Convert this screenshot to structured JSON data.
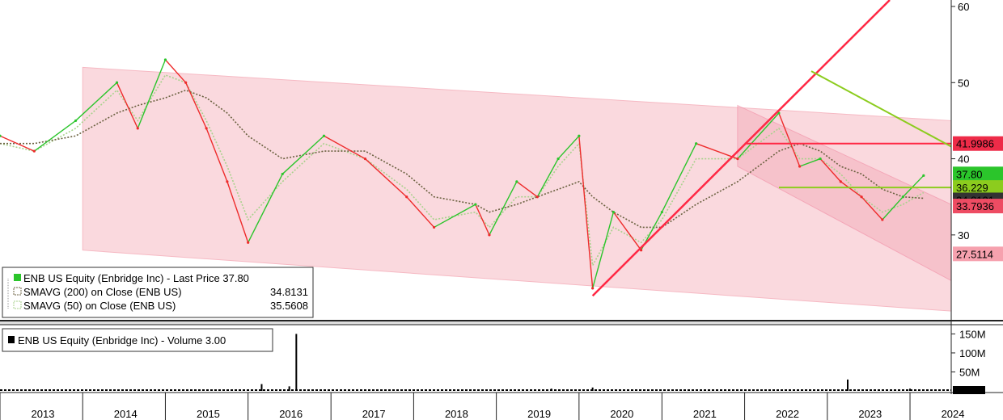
{
  "chart_data": [
    {
      "type": "line",
      "panel": "price",
      "title": "",
      "xlabel": "",
      "ylabel": "",
      "x": [
        "2013-01",
        "2013-06",
        "2013-12",
        "2014-06",
        "2014-09",
        "2015-01",
        "2015-04",
        "2015-07",
        "2015-10",
        "2016-01",
        "2016-06",
        "2016-12",
        "2017-06",
        "2017-12",
        "2018-04",
        "2018-10",
        "2018-12",
        "2019-04",
        "2019-07",
        "2019-10",
        "2020-01",
        "2020-03",
        "2020-06",
        "2020-10",
        "2021-01",
        "2021-06",
        "2021-12",
        "2022-06",
        "2022-09",
        "2022-12",
        "2023-03",
        "2023-06",
        "2023-09",
        "2023-12",
        "2024-03"
      ],
      "series": [
        {
          "name": "ENB US Equity (Enbridge Inc) - Last Price",
          "values": [
            43,
            41,
            45,
            50,
            44,
            53,
            50,
            44,
            37,
            29,
            38,
            43,
            40,
            35,
            31,
            34,
            30,
            37,
            35,
            40,
            43,
            23,
            33,
            28,
            33,
            42,
            40,
            46,
            39,
            40,
            37,
            35,
            32,
            35,
            37.8
          ]
        },
        {
          "name": "SMAVG (200) on Close (ENB US)",
          "values": [
            42,
            42,
            43,
            46,
            47,
            48,
            49,
            48,
            46,
            43,
            40,
            41,
            41,
            38,
            35,
            34,
            33,
            34,
            35,
            36,
            37,
            35,
            33,
            31,
            31,
            34,
            37,
            41,
            42,
            41,
            39,
            38,
            36,
            35,
            34.8131
          ]
        },
        {
          "name": "SMAVG (50) on Close (ENB US)",
          "values": [
            42,
            41,
            44,
            49,
            45,
            51,
            50,
            45,
            39,
            32,
            37,
            42,
            40,
            36,
            32,
            33,
            31,
            35,
            35,
            39,
            42,
            26,
            31,
            29,
            32,
            40,
            40,
            44,
            40,
            40,
            38,
            35,
            33,
            34,
            35.5608
          ]
        }
      ],
      "legend": [
        {
          "label": "ENB US Equity (Enbridge Inc) - Last Price 37.80",
          "value": ""
        },
        {
          "label": "SMAVG (200)  on Close (ENB US)",
          "value": "34.8131"
        },
        {
          "label": "SMAVG (50)  on Close (ENB US)",
          "value": "35.5608"
        }
      ],
      "legend_position": "bottom-left",
      "ylim": [
        18,
        60
      ],
      "yticks": [
        "30",
        "40",
        "50",
        "60"
      ],
      "price_tags": [
        {
          "text": "41.9986",
          "value": 41.9986,
          "color": "#ee2b48",
          "text_color": "#000000"
        },
        {
          "text": "37.80",
          "value": 37.8,
          "color": "#2bc52b",
          "text_color": "#000000"
        },
        {
          "text": "36.229",
          "value": 36.229,
          "color": "#8ccc1e",
          "text_color": "#000000"
        },
        {
          "text": "34.8131",
          "value": 34.8131,
          "color": "#333333",
          "text_color": "#ffffff"
        },
        {
          "text": "33.7936",
          "value": 33.7936,
          "color": "#ee4c63",
          "text_color": "#000000"
        },
        {
          "text": "27.5114",
          "value": 27.5114,
          "color": "#f6a1ae",
          "text_color": "#000000"
        }
      ],
      "annotations": {
        "long_channel_color": "#f9d0d6",
        "short_channel_color": "#f5b3bf",
        "uptrend_color": "#ff2844",
        "downtrend_color": "#8ccc1e"
      }
    },
    {
      "type": "bar",
      "panel": "volume",
      "title": "",
      "xlabel": "",
      "ylabel": "",
      "legend": [
        {
          "label": "ENB US Equity (Enbridge Inc) - Volume 3.00"
        }
      ],
      "ylim": [
        0,
        170
      ],
      "yticks": [
        "50M",
        "100M",
        "150M"
      ],
      "last_volume_tag": "3.00",
      "x": [
        "2016-03",
        "2016-07",
        "2016-08",
        "2019-09",
        "2020-03",
        "2023-04",
        "2024-01"
      ],
      "values": [
        18,
        12,
        150,
        6,
        9,
        30,
        6
      ]
    }
  ],
  "x_axis": {
    "years": [
      "2013",
      "2014",
      "2015",
      "2016",
      "2017",
      "2018",
      "2019",
      "2020",
      "2021",
      "2022",
      "2023",
      "2024"
    ]
  },
  "colors": {
    "price_line_up": "#2bc52b",
    "price_line_down": "#ee2b2b",
    "sma200": "#6b6140",
    "sma50": "#a8d28c"
  }
}
